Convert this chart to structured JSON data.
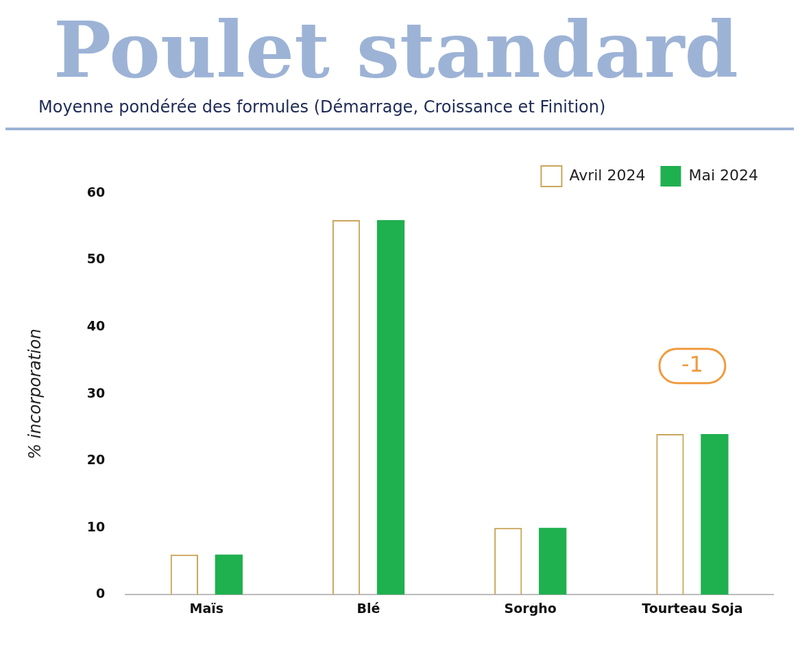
{
  "chart_data": {
    "type": "bar",
    "title": "Poulet standard",
    "subtitle": "Moyenne pondérée des formules (Démarrage, Croissance et Finition)",
    "ylabel": "% incorporation",
    "categories": [
      "Maïs",
      "Blé",
      "Sorgho",
      "Tourteau Soja"
    ],
    "series": [
      {
        "name": "Avril 2024",
        "color": "#c9a55a",
        "values": [
          6,
          56,
          10,
          24
        ]
      },
      {
        "name": "Mai 2024",
        "color": "#1fb04f",
        "values": [
          6,
          56,
          10,
          24
        ]
      }
    ],
    "ylim": [
      0,
      60
    ],
    "yticks": [
      0,
      10,
      20,
      30,
      40,
      50,
      60
    ],
    "legend": "top right",
    "annotations": [
      "-1"
    ]
  }
}
